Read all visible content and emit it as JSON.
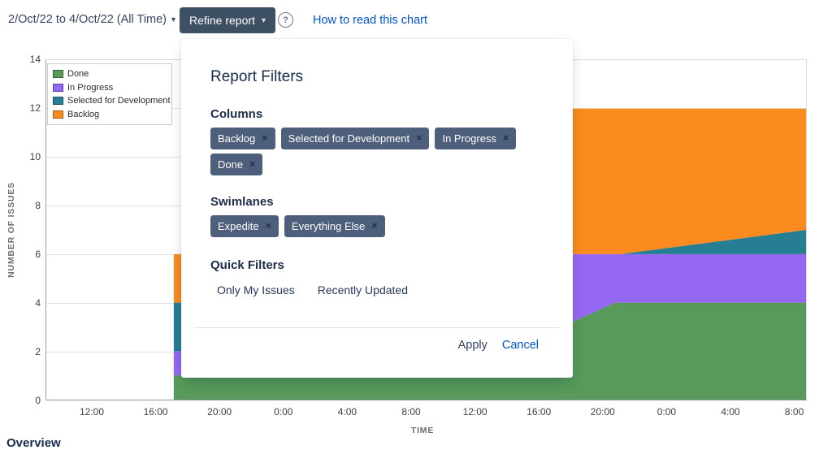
{
  "toolbar": {
    "date_range_label": "2/Oct/22 to 4/Oct/22 (All Time)",
    "caret_glyph": "▾",
    "refine_report_label": "Refine report",
    "help_icon_glyph": "?",
    "how_to_read_label": "How to read this chart"
  },
  "legend": {
    "items": [
      {
        "label": "Done",
        "color": "#579a59"
      },
      {
        "label": "In Progress",
        "color": "#9468f2"
      },
      {
        "label": "Selected for Development",
        "color": "#267e93"
      },
      {
        "label": "Backlog",
        "color": "#fb8b1e"
      }
    ]
  },
  "popup": {
    "title": "Report Filters",
    "columns": {
      "heading": "Columns",
      "tags": [
        "Backlog",
        "Selected for Development",
        "In Progress",
        "Done"
      ]
    },
    "swimlanes": {
      "heading": "Swimlanes",
      "tags": [
        "Expedite",
        "Everything Else"
      ]
    },
    "quick_filters": {
      "heading": "Quick Filters",
      "options": [
        "Only My Issues",
        "Recently Updated"
      ]
    },
    "remove_glyph": "×",
    "apply_label": "Apply",
    "cancel_label": "Cancel"
  },
  "footer": {
    "overview_label": "Overview"
  },
  "chart_data": {
    "type": "area",
    "stacked": true,
    "title": "",
    "xlabel": "TIME",
    "ylabel": "NUMBER OF ISSUES",
    "x_tick_labels": [
      "12:00",
      "16:00",
      "20:00",
      "0:00",
      "4:00",
      "8:00",
      "12:00",
      "16:00",
      "20:00",
      "0:00",
      "4:00",
      "8:00"
    ],
    "hours_per_tick": 4,
    "x_unit": "hours after first x tick (12:00 on 2/Oct/22)",
    "y_ticks": [
      0,
      2,
      4,
      6,
      8,
      10,
      12,
      14
    ],
    "ylim": [
      0,
      14
    ],
    "grid": "horizontal",
    "legend_position": "top-left",
    "series_note": "bottom-to-top stacking; top_boundary points are [hours, cumulative issue count]",
    "series": [
      {
        "name": "Done",
        "color": "#579a59",
        "top_boundary": [
          [
            5.1,
            1
          ],
          [
            5.5,
            1
          ],
          [
            30.1,
            3.2
          ],
          [
            32.8,
            4
          ],
          [
            44.8,
            4
          ]
        ]
      },
      {
        "name": "In Progress",
        "color": "#9468f2",
        "top_boundary": [
          [
            5.1,
            2
          ],
          [
            5.5,
            2
          ],
          [
            30.1,
            6
          ],
          [
            44.8,
            6
          ]
        ]
      },
      {
        "name": "Selected for Development",
        "color": "#267e93",
        "top_boundary": [
          [
            5.1,
            4
          ],
          [
            5.5,
            4
          ],
          [
            30.1,
            6
          ],
          [
            33.1,
            6
          ],
          [
            44.8,
            7
          ]
        ]
      },
      {
        "name": "Backlog",
        "color": "#fb8b1e",
        "top_boundary": [
          [
            5.1,
            6
          ],
          [
            5.5,
            6
          ],
          [
            27.8,
            12
          ],
          [
            44.8,
            12
          ]
        ]
      }
    ]
  }
}
